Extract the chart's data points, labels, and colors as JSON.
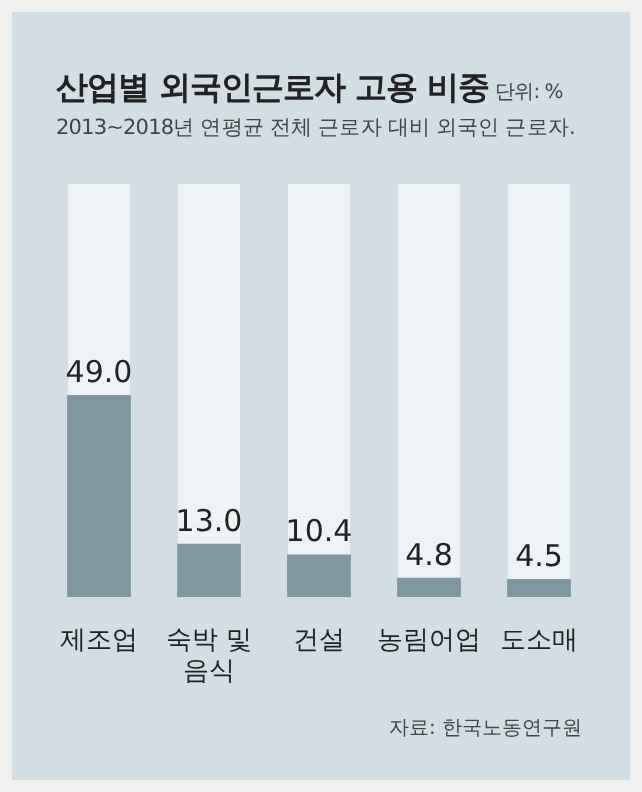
{
  "chart_data": {
    "type": "bar",
    "title": "산업별 외국인근로자 고용 비중",
    "subtitle": "2013~2018년 연평균 전체 근로자 대비 외국인 근로자.",
    "annotations": [
      "단위: %",
      "자료: 한국노동연구원"
    ],
    "categories": [
      "제조업",
      "숙박 및\n음식",
      "건설",
      "농림어업",
      "도소매"
    ],
    "values": [
      49.0,
      13.0,
      10.4,
      4.8,
      4.5
    ],
    "color": "#7f97a1",
    "ylim": [
      0,
      100
    ],
    "tick_labels": "x",
    "grid": false,
    "legend": false,
    "value_labels": [
      "49.0",
      "13.0",
      "10.4",
      "4.8",
      "4.5"
    ]
  }
}
